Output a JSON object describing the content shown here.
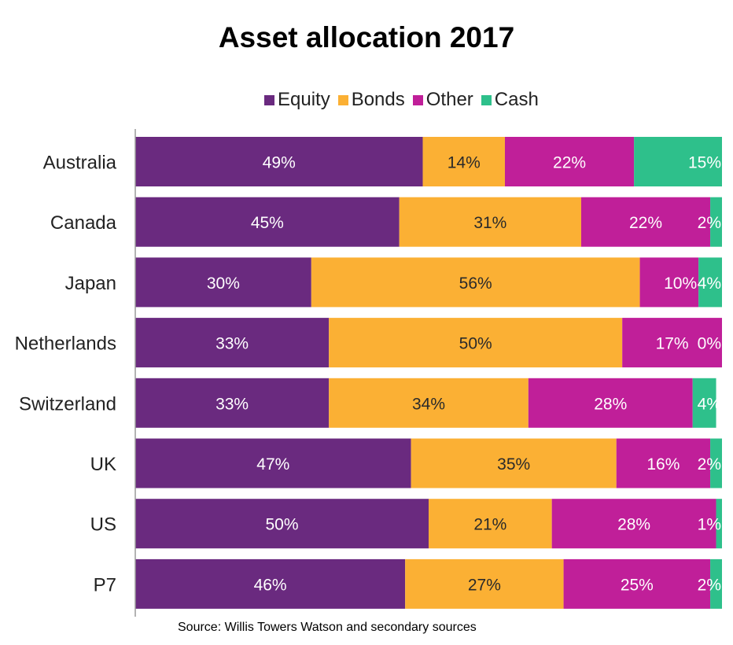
{
  "chart_data": {
    "type": "bar",
    "orientation": "horizontal",
    "stacked": true,
    "title": "Asset allocation 2017",
    "categories": [
      "Australia",
      "Canada",
      "Japan",
      "Netherlands",
      "Switzerland",
      "UK",
      "US",
      "P7"
    ],
    "series": [
      {
        "name": "Equity",
        "color": "#6a2a7f",
        "values": [
          49,
          45,
          30,
          33,
          33,
          47,
          50,
          46
        ]
      },
      {
        "name": "Bonds",
        "color": "#fbb034",
        "values": [
          14,
          31,
          56,
          50,
          34,
          35,
          21,
          27
        ]
      },
      {
        "name": "Other",
        "color": "#c01f99",
        "values": [
          22,
          22,
          10,
          17,
          28,
          16,
          28,
          25
        ]
      },
      {
        "name": "Cash",
        "color": "#2ec08b",
        "values": [
          15,
          2,
          4,
          0,
          4,
          2,
          1,
          2
        ]
      }
    ],
    "labels": [
      [
        "49%",
        "14%",
        "22%",
        "15%"
      ],
      [
        "45%",
        "31%",
        "22%",
        "2%"
      ],
      [
        "30%",
        "56%",
        "10%",
        "4%"
      ],
      [
        "33%",
        "50%",
        "17%",
        "0%"
      ],
      [
        "33%",
        "34%",
        "28%",
        "4%"
      ],
      [
        "47%",
        "35%",
        "16%",
        "2%"
      ],
      [
        "50%",
        "21%",
        "28%",
        "1%"
      ],
      [
        "46%",
        "27%",
        "25%",
        "2%"
      ]
    ],
    "xlim": [
      0,
      100
    ],
    "legend_position": "top-center",
    "grid": false
  },
  "source": "Source: Willis Towers Watson and secondary sources"
}
